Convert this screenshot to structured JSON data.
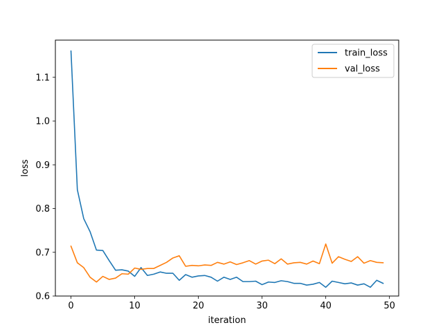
{
  "chart_data": {
    "type": "line",
    "xlabel": "iteration",
    "ylabel": "loss",
    "xlim": [
      -2.45,
      51.45
    ],
    "ylim": [
      0.6,
      1.185
    ],
    "xticks": [
      0,
      10,
      20,
      30,
      40,
      50
    ],
    "yticks": [
      0.6,
      0.7,
      0.8,
      0.9,
      1.0,
      1.1
    ],
    "ytick_labels": [
      "0.6",
      "0.7",
      "0.8",
      "0.9",
      "1.0",
      "1.1"
    ],
    "grid": false,
    "legend_position": "top-right",
    "series": [
      {
        "name": "train_loss",
        "color": "#1f77b4",
        "x": [
          0,
          1,
          2,
          3,
          4,
          5,
          6,
          7,
          8,
          9,
          10,
          11,
          12,
          13,
          14,
          15,
          16,
          17,
          18,
          19,
          20,
          21,
          22,
          23,
          24,
          25,
          26,
          27,
          28,
          29,
          30,
          31,
          32,
          33,
          34,
          35,
          36,
          37,
          38,
          39,
          40,
          41,
          42,
          43,
          44,
          45,
          46,
          47,
          48,
          49
        ],
        "values": [
          1.16,
          0.843,
          0.777,
          0.747,
          0.705,
          0.704,
          0.681,
          0.659,
          0.66,
          0.657,
          0.645,
          0.665,
          0.647,
          0.65,
          0.655,
          0.652,
          0.652,
          0.636,
          0.649,
          0.643,
          0.646,
          0.647,
          0.643,
          0.634,
          0.643,
          0.638,
          0.643,
          0.633,
          0.633,
          0.634,
          0.626,
          0.632,
          0.631,
          0.635,
          0.633,
          0.629,
          0.629,
          0.625,
          0.627,
          0.631,
          0.62,
          0.634,
          0.631,
          0.628,
          0.63,
          0.625,
          0.628,
          0.62,
          0.636,
          0.629
        ]
      },
      {
        "name": "val_loss",
        "color": "#ff7f0e",
        "x": [
          0,
          1,
          2,
          3,
          4,
          5,
          6,
          7,
          8,
          9,
          10,
          11,
          12,
          13,
          14,
          15,
          16,
          17,
          18,
          19,
          20,
          21,
          22,
          23,
          24,
          25,
          26,
          27,
          28,
          29,
          30,
          31,
          32,
          33,
          34,
          35,
          36,
          37,
          38,
          39,
          40,
          41,
          42,
          43,
          44,
          45,
          46,
          47,
          48,
          49
        ],
        "values": [
          0.714,
          0.676,
          0.665,
          0.643,
          0.632,
          0.645,
          0.638,
          0.641,
          0.651,
          0.65,
          0.664,
          0.661,
          0.663,
          0.663,
          0.67,
          0.677,
          0.687,
          0.692,
          0.668,
          0.67,
          0.669,
          0.671,
          0.67,
          0.677,
          0.673,
          0.678,
          0.672,
          0.676,
          0.681,
          0.673,
          0.68,
          0.682,
          0.674,
          0.685,
          0.673,
          0.676,
          0.677,
          0.673,
          0.68,
          0.674,
          0.719,
          0.675,
          0.69,
          0.684,
          0.679,
          0.69,
          0.675,
          0.681,
          0.677,
          0.676
        ]
      }
    ]
  }
}
